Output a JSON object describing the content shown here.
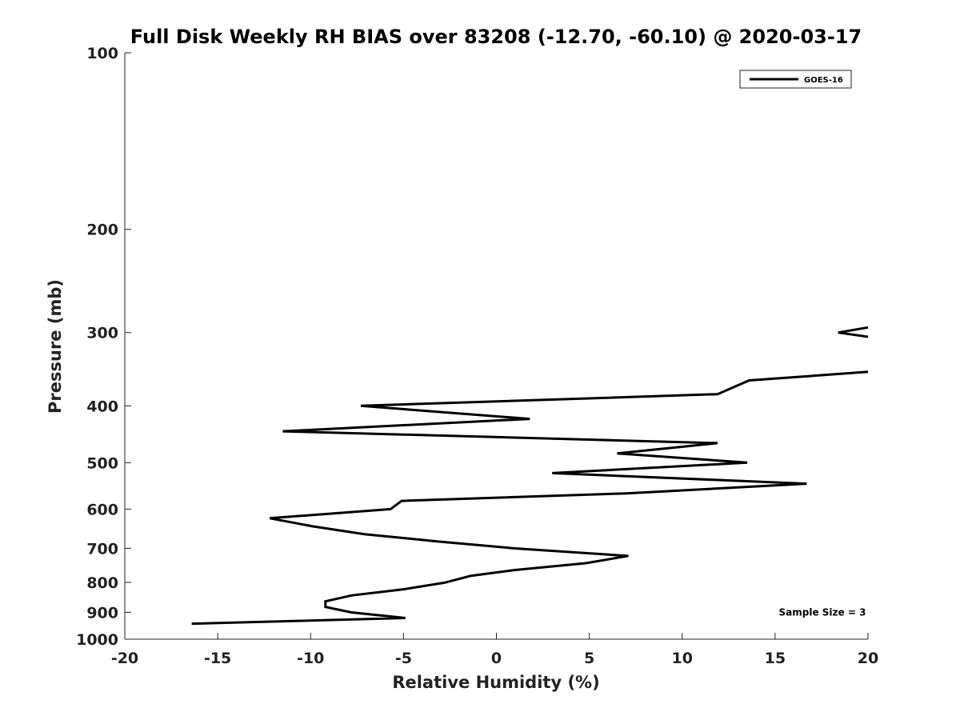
{
  "chart_data": {
    "type": "line",
    "title": "Full Disk Weekly RH BIAS over 83208 (-12.70, -60.10) @ 2020-03-17",
    "xlabel": "Relative Humidity (%)",
    "ylabel": "Pressure (mb)",
    "xlim": [
      -20,
      20
    ],
    "ylim": [
      100,
      1000
    ],
    "y_scale": "log",
    "y_reversed": true,
    "grid": false,
    "legend_position": "top-right",
    "x_ticks": [
      -20,
      -15,
      -10,
      -5,
      0,
      5,
      10,
      15,
      20
    ],
    "x_tick_labels": [
      "-20",
      "-15",
      "-10",
      "-5",
      "0",
      "5",
      "10",
      "15",
      "20"
    ],
    "y_ticks": [
      100,
      200,
      300,
      400,
      500,
      600,
      700,
      800,
      900,
      1000
    ],
    "y_tick_labels": [
      "100",
      "200",
      "300",
      "400",
      "500",
      "600",
      "700",
      "800",
      "900",
      "1000"
    ],
    "series": [
      {
        "name": "GOES-16",
        "color": "#000000",
        "segments": [
          [
            {
              "x": 20.0,
              "y": 294
            },
            {
              "x": 18.4,
              "y": 300
            },
            {
              "x": 20.0,
              "y": 305
            }
          ],
          [
            {
              "x": 20.0,
              "y": 350
            },
            {
              "x": 13.6,
              "y": 362
            },
            {
              "x": 11.9,
              "y": 382
            },
            {
              "x": -7.3,
              "y": 400
            },
            {
              "x": 1.8,
              "y": 421
            },
            {
              "x": -11.5,
              "y": 442
            },
            {
              "x": 11.9,
              "y": 463
            },
            {
              "x": 6.5,
              "y": 482
            },
            {
              "x": 13.5,
              "y": 500
            },
            {
              "x": 3.0,
              "y": 521
            },
            {
              "x": 16.7,
              "y": 543
            },
            {
              "x": 7.0,
              "y": 564
            },
            {
              "x": -5.1,
              "y": 581
            },
            {
              "x": -5.7,
              "y": 600
            },
            {
              "x": -12.2,
              "y": 622
            },
            {
              "x": -9.9,
              "y": 642
            },
            {
              "x": -7.1,
              "y": 662
            },
            {
              "x": -3.2,
              "y": 681
            },
            {
              "x": 1.0,
              "y": 700
            },
            {
              "x": 7.1,
              "y": 721
            },
            {
              "x": 4.8,
              "y": 742
            },
            {
              "x": 1.0,
              "y": 762
            },
            {
              "x": -1.4,
              "y": 780
            },
            {
              "x": -2.8,
              "y": 801
            },
            {
              "x": -5.0,
              "y": 822
            },
            {
              "x": -7.8,
              "y": 842
            },
            {
              "x": -9.2,
              "y": 862
            },
            {
              "x": -9.2,
              "y": 881
            },
            {
              "x": -7.8,
              "y": 900
            },
            {
              "x": -4.9,
              "y": 920
            },
            {
              "x": -16.4,
              "y": 941
            }
          ]
        ]
      }
    ],
    "annotations": [
      {
        "text": "Sample Size = 3",
        "x": 15.2,
        "y": 900
      }
    ]
  }
}
